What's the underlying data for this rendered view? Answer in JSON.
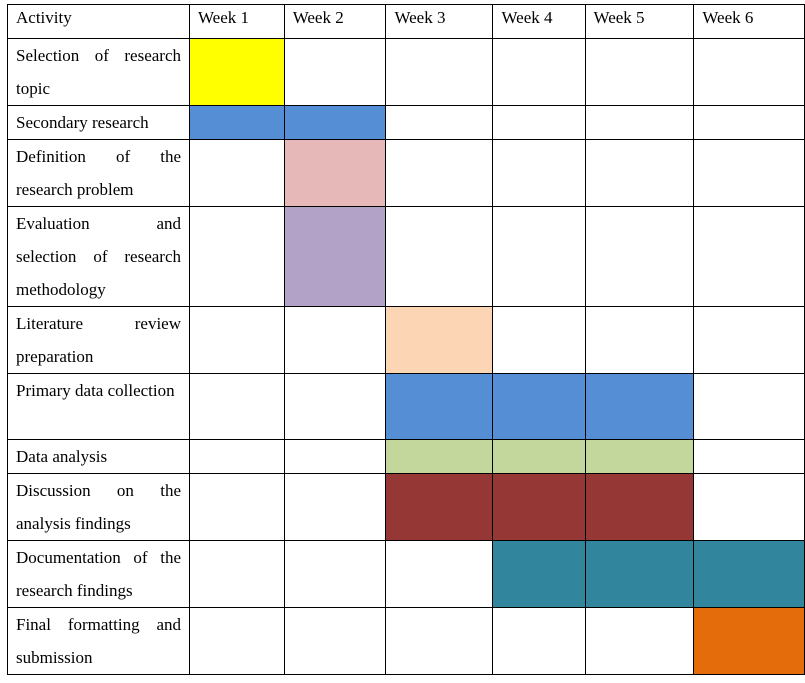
{
  "columns": [
    "Activity",
    "Week 1",
    "Week 2",
    "Week 3",
    "Week 4",
    "Week 5",
    "Week 6"
  ],
  "rows": [
    {
      "label": "Selection of research topic",
      "height": 66,
      "fill": [
        1,
        0,
        0,
        0,
        0,
        0
      ],
      "color": "#ffff00"
    },
    {
      "label": "Secondary research",
      "height": 33,
      "fill": [
        1,
        1,
        0,
        0,
        0,
        0
      ],
      "color": "#558ed5"
    },
    {
      "label": "Definition of the research problem",
      "height": 66,
      "fill": [
        0,
        1,
        0,
        0,
        0,
        0
      ],
      "color": "#e6b9b8"
    },
    {
      "label": "Evaluation and selection of research methodology",
      "height": 100,
      "fill": [
        0,
        1,
        0,
        0,
        0,
        0
      ],
      "color": "#b3a2c7"
    },
    {
      "label": "Literature review preparation",
      "height": 66,
      "fill": [
        0,
        0,
        1,
        0,
        0,
        0
      ],
      "color": "#fcd5b5"
    },
    {
      "label": "Primary data collection",
      "height": 66,
      "fill": [
        0,
        0,
        1,
        1,
        1,
        0
      ],
      "color": "#558ed5"
    },
    {
      "label": "Data analysis",
      "height": 33,
      "fill": [
        0,
        0,
        1,
        1,
        1,
        0
      ],
      "color": "#c3d69b"
    },
    {
      "label": "Discussion on the analysis findings",
      "height": 66,
      "fill": [
        0,
        0,
        1,
        1,
        1,
        0
      ],
      "color": "#953735"
    },
    {
      "label": "Documentation of the research findings",
      "height": 66,
      "fill": [
        0,
        0,
        0,
        1,
        1,
        1
      ],
      "color": "#31859c"
    },
    {
      "label": "Final formatting and submission",
      "height": 66,
      "fill": [
        0,
        0,
        0,
        0,
        0,
        1
      ],
      "color": "#e46c0a"
    }
  ]
}
